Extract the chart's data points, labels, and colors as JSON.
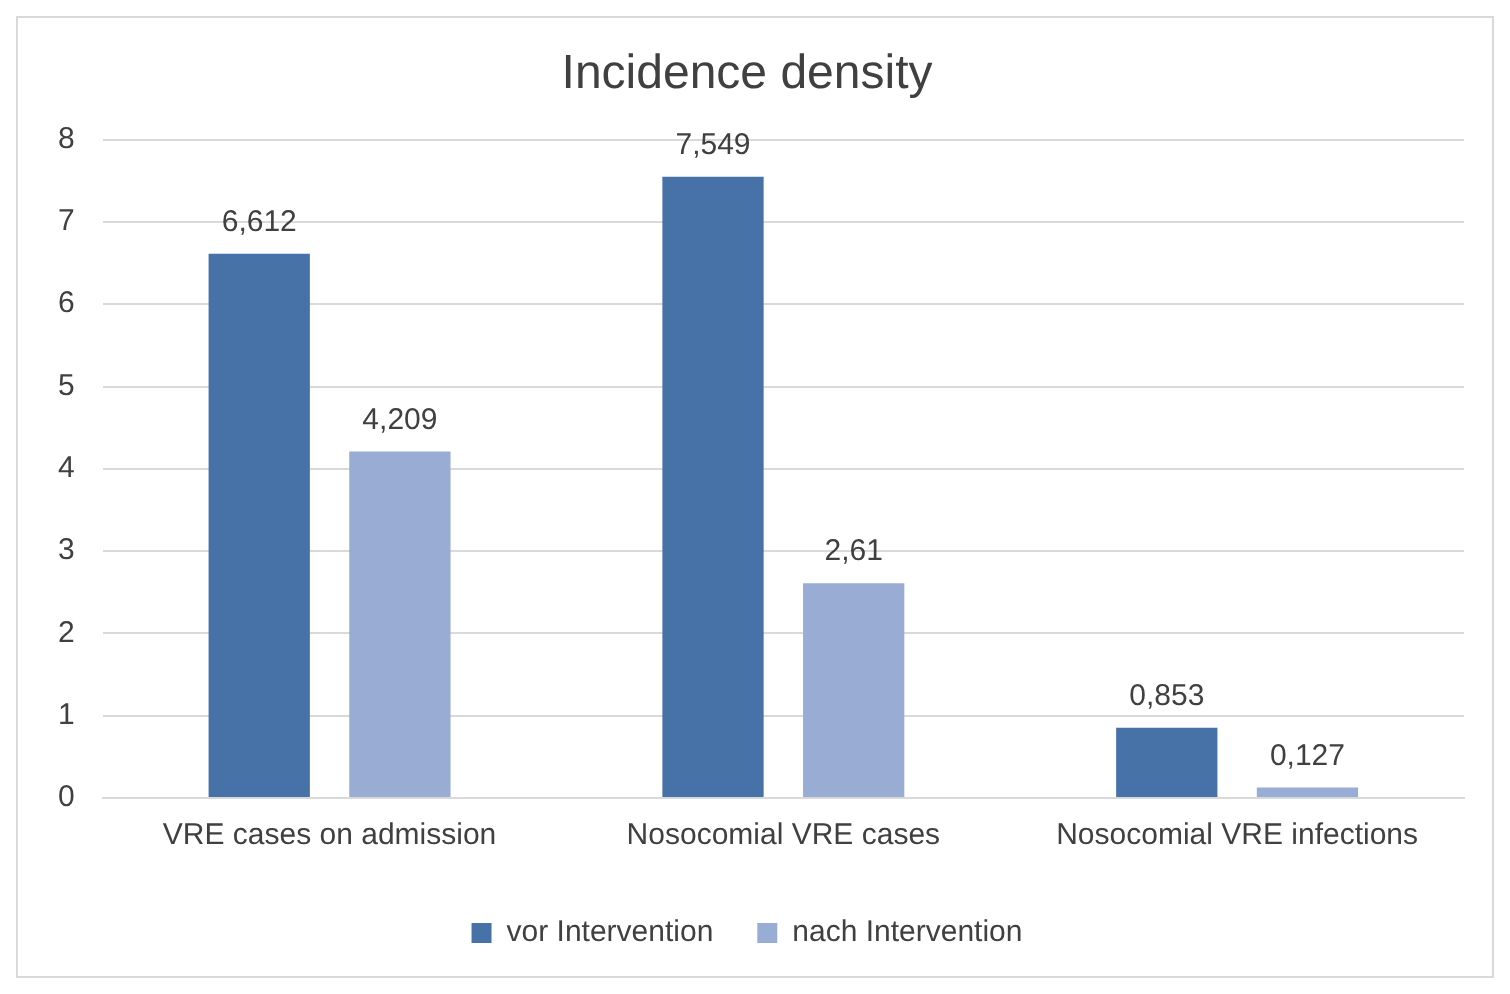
{
  "chart_data": {
    "type": "bar",
    "title": "Incidence density",
    "categories": [
      "VRE cases on admission",
      "Nosocomial VRE cases",
      "Nosocomial VRE infections"
    ],
    "series": [
      {
        "name": "vor Intervention",
        "color": "#4672a8",
        "values": [
          6.612,
          7.549,
          0.853
        ],
        "value_labels": [
          "6,612",
          "7,549",
          "0,853"
        ]
      },
      {
        "name": "nach Intervention",
        "color": "#98acd4",
        "values": [
          4.209,
          2.61,
          0.127
        ],
        "value_labels": [
          "4,209",
          "2,61",
          "0,127"
        ]
      }
    ],
    "ylim": [
      0,
      8
    ],
    "yticks": [
      0,
      1,
      2,
      3,
      4,
      5,
      6,
      7,
      8
    ],
    "grid": "y",
    "legend": "bottom"
  }
}
